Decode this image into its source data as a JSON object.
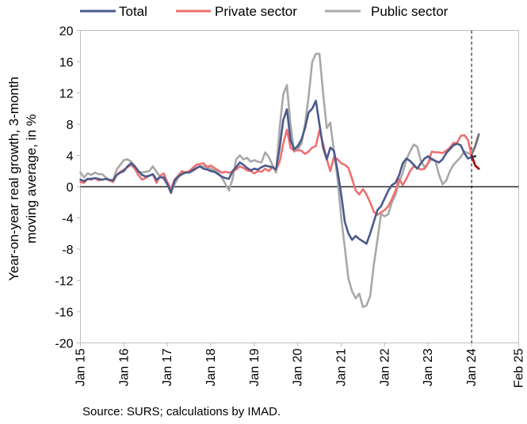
{
  "chart_data": {
    "type": "line",
    "ylabel_lines": [
      "Year-on-year real growth, 3-month",
      "moving average, in %"
    ],
    "xlabel": "",
    "ylim": [
      -20,
      20
    ],
    "yticks": [
      20,
      16,
      12,
      8,
      4,
      0,
      -4,
      -8,
      -12,
      -16,
      -20
    ],
    "yticks_labels": [
      "20",
      "16",
      "12",
      "8",
      "4",
      "0",
      "-4",
      "-8",
      "-12",
      "-16",
      "-20"
    ],
    "x_start": "Jan 15",
    "x_end": "Feb 25",
    "x_tick_labels": [
      "Jan 15",
      "Jan 16",
      "Jan 17",
      "Jan 18",
      "Jan 19",
      "Jan 20",
      "Jan 21",
      "Jan 22",
      "Jan 23",
      "Jan 24",
      "Feb 25"
    ],
    "dashed_vertical_at": "Jan 24",
    "grid": false,
    "legend_position": "top",
    "colors": {
      "total": "#4a5a8c",
      "total_recent": "#3a3a4a",
      "private": "#ee7070",
      "private_recent": "#a0101a",
      "public": "#a8a8a8",
      "public_recent": "#707070"
    },
    "series": [
      {
        "name": "Total",
        "key": "total",
        "values": [
          0.9,
          0.7,
          1.0,
          1.0,
          1.1,
          1.0,
          0.9,
          1.0,
          0.9,
          0.8,
          1.5,
          1.8,
          2.0,
          2.6,
          3.0,
          2.6,
          2.0,
          1.5,
          1.3,
          1.4,
          1.6,
          0.9,
          1.2,
          1.2,
          0.3,
          -0.8,
          0.8,
          1.3,
          1.6,
          1.8,
          1.8,
          2.1,
          2.4,
          2.6,
          2.3,
          2.2,
          2.0,
          1.9,
          1.6,
          1.3,
          1.1,
          1.0,
          2.0,
          2.5,
          3.1,
          2.8,
          2.4,
          2.1,
          2.3,
          2.2,
          2.5,
          2.7,
          2.6,
          2.5,
          2.2,
          5.0,
          8.5,
          9.9,
          6.0,
          4.8,
          5.2,
          6.0,
          7.5,
          9.5,
          10.0,
          11.0,
          8.0,
          5.0,
          3.5,
          5.0,
          4.6,
          2.0,
          -1.0,
          -4.5,
          -6.0,
          -6.8,
          -6.3,
          -6.7,
          -7.0,
          -7.3,
          -6.0,
          -4.5,
          -3.0,
          -2.5,
          -1.5,
          -0.5,
          0.2,
          0.5,
          1.5,
          3.0,
          3.6,
          3.3,
          2.8,
          2.3,
          3.0,
          3.6,
          3.9,
          3.5,
          3.3,
          3.1,
          3.5,
          4.3,
          4.8,
          5.3,
          5.5,
          5.3,
          4.3,
          3.6,
          3.8,
          3.9
        ]
      },
      {
        "name": "Private sector",
        "key": "private",
        "values": [
          0.6,
          0.5,
          1.0,
          0.9,
          1.1,
          0.8,
          0.9,
          1.0,
          0.8,
          0.6,
          1.5,
          1.9,
          2.2,
          2.5,
          2.8,
          2.3,
          1.5,
          0.9,
          1.1,
          1.4,
          1.6,
          0.5,
          1.4,
          1.7,
          0.6,
          -0.3,
          0.9,
          1.4,
          2.0,
          1.8,
          2.0,
          2.4,
          2.8,
          2.9,
          3.0,
          2.5,
          2.7,
          2.4,
          2.1,
          1.8,
          1.9,
          1.8,
          1.9,
          2.2,
          2.6,
          2.4,
          2.1,
          2.0,
          1.7,
          2.0,
          1.9,
          2.3,
          2.0,
          2.5,
          2.2,
          3.2,
          5.5,
          7.3,
          5.0,
          4.6,
          4.7,
          4.6,
          4.2,
          4.5,
          5.0,
          5.2,
          7.2,
          5.5,
          3.5,
          2.0,
          3.8,
          3.5,
          3.0,
          2.8,
          2.4,
          1.0,
          -0.5,
          -1.0,
          -0.3,
          -1.0,
          -2.0,
          -3.2,
          -3.6,
          -3.3,
          -3.0,
          -2.5,
          -1.6,
          -0.5,
          1.0,
          0.2,
          1.0,
          2.0,
          2.6,
          2.4,
          2.2,
          2.3,
          3.0,
          4.5,
          4.4,
          4.4,
          4.3,
          4.6,
          5.0,
          5.6,
          5.6,
          6.5,
          6.6,
          6.0,
          4.0,
          2.7,
          2.3
        ]
      },
      {
        "name": "Public sector",
        "key": "public",
        "values": [
          1.8,
          1.2,
          1.7,
          1.5,
          1.8,
          1.6,
          1.6,
          1.2,
          0.8,
          0.8,
          2.2,
          2.8,
          3.4,
          3.5,
          3.2,
          2.6,
          2.0,
          1.8,
          1.9,
          2.0,
          2.6,
          1.9,
          1.3,
          1.0,
          0.3,
          -0.6,
          0.3,
          1.2,
          1.6,
          1.9,
          1.8,
          2.0,
          2.3,
          2.6,
          2.6,
          2.5,
          2.3,
          2.1,
          1.8,
          1.2,
          0.4,
          -0.5,
          1.0,
          3.5,
          4.0,
          3.5,
          3.7,
          3.2,
          3.4,
          3.2,
          3.1,
          4.4,
          3.8,
          2.8,
          1.8,
          7.5,
          11.8,
          13.0,
          8.0,
          4.5,
          4.8,
          5.5,
          8.0,
          11.5,
          16.0,
          17.0,
          17.0,
          12.0,
          7.5,
          8.2,
          4.5,
          1.0,
          -4.0,
          -7.8,
          -11.8,
          -13.4,
          -14.3,
          -13.7,
          -15.4,
          -15.2,
          -14.0,
          -10.0,
          -6.8,
          -3.5,
          -3.8,
          -3.5,
          -2.0,
          -1.0,
          0.6,
          1.8,
          3.5,
          4.5,
          5.4,
          5.1,
          3.3,
          2.5,
          3.0,
          3.6,
          3.3,
          1.5,
          0.3,
          0.8,
          2.0,
          2.8,
          3.3,
          3.8,
          4.5,
          4.3,
          4.1,
          5.2,
          6.7
        ]
      }
    ],
    "source_note": "Source: SURS; calculations by IMAD."
  }
}
